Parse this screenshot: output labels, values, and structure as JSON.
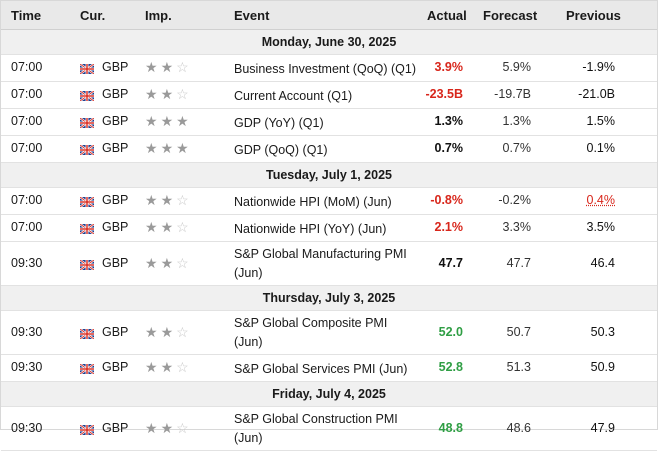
{
  "header": {
    "time": "Time",
    "currency": "Cur.",
    "importance": "Imp.",
    "event": "Event",
    "actual": "Actual",
    "forecast": "Forecast",
    "previous": "Previous"
  },
  "days": [
    {
      "label": "Monday, June 30, 2025"
    },
    {
      "label": "Tuesday, July 1, 2025"
    },
    {
      "label": "Thursday, July 3, 2025"
    },
    {
      "label": "Friday, July 4, 2025"
    }
  ],
  "rows": [
    {
      "time": "07:00",
      "currency": "GBP",
      "stars": 2,
      "event": "Business Investment (QoQ) (Q1)",
      "actual": "3.9%",
      "actual_color": "#d8261b",
      "forecast": "5.9%",
      "previous": "-1.9%"
    },
    {
      "time": "07:00",
      "currency": "GBP",
      "stars": 2,
      "event": "Current Account (Q1)",
      "actual": "-23.5B",
      "actual_color": "#d8261b",
      "forecast": "-19.7B",
      "previous": "-21.0B"
    },
    {
      "time": "07:00",
      "currency": "GBP",
      "stars": 3,
      "event": "GDP (YoY) (Q1)",
      "actual": "1.3%",
      "actual_color": "#111111",
      "forecast": "1.3%",
      "previous": "1.5%"
    },
    {
      "time": "07:00",
      "currency": "GBP",
      "stars": 3,
      "event": "GDP (QoQ) (Q1)",
      "actual": "0.7%",
      "actual_color": "#111111",
      "forecast": "0.7%",
      "previous": "0.1%"
    },
    {
      "time": "07:00",
      "currency": "GBP",
      "stars": 2,
      "event": "Nationwide HPI (MoM) (Jun)",
      "actual": "-0.8%",
      "actual_color": "#d8261b",
      "forecast": "-0.2%",
      "previous": "0.4%",
      "previous_revised": true
    },
    {
      "time": "07:00",
      "currency": "GBP",
      "stars": 2,
      "event": "Nationwide HPI (YoY) (Jun)",
      "actual": "2.1%",
      "actual_color": "#d8261b",
      "forecast": "3.3%",
      "previous": "3.5%"
    },
    {
      "time": "09:30",
      "currency": "GBP",
      "stars": 2,
      "event": "S&P Global Manufacturing PMI (Jun)",
      "actual": "47.7",
      "actual_color": "#111111",
      "forecast": "47.7",
      "previous": "46.4"
    },
    {
      "time": "09:30",
      "currency": "GBP",
      "stars": 2,
      "event": "S&P Global Composite PMI (Jun)",
      "actual": "52.0",
      "actual_color": "#2f9e44",
      "forecast": "50.7",
      "previous": "50.3"
    },
    {
      "time": "09:30",
      "currency": "GBP",
      "stars": 2,
      "event": "S&P Global Services PMI (Jun)",
      "actual": "52.8",
      "actual_color": "#2f9e44",
      "forecast": "51.3",
      "previous": "50.9"
    },
    {
      "time": "09:30",
      "currency": "GBP",
      "stars": 2,
      "event": "S&P Global Construction PMI (Jun)",
      "actual": "48.8",
      "actual_color": "#2f9e44",
      "forecast": "48.6",
      "previous": "47.9"
    }
  ],
  "icons": {
    "flag": "uk-flag-icon",
    "star": "star-icon"
  }
}
